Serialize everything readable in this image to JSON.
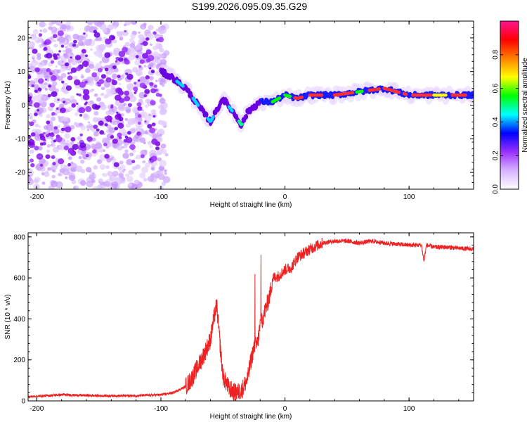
{
  "title": "S199.2026.095.09.35.G29",
  "chart_data": [
    {
      "type": "heatmap",
      "name": "spectrogram",
      "xlabel": "Height of straight line (km)",
      "ylabel": "Frequency (Hz)",
      "xlim": [
        -207,
        152
      ],
      "ylim": [
        -25,
        25
      ],
      "xticks": [
        -200,
        -100,
        0,
        100
      ],
      "yticks": [
        -20,
        -10,
        0,
        10,
        20
      ],
      "colorbar": {
        "label": "Normalized spectral amplitude",
        "range": [
          0,
          1
        ],
        "ticks": [
          "0.0",
          "0.2",
          "0.4",
          "0.6",
          "0.8"
        ],
        "colors": [
          "#ffffff",
          "#d7b3ff",
          "#9b30ff",
          "#0000ff",
          "#00ffff",
          "#00ff00",
          "#ffff00",
          "#ff8000",
          "#ff0000",
          "#ff1493"
        ]
      },
      "ridge": {
        "description": "dominant frequency track (km, Hz)",
        "x": [
          -100,
          -90,
          -80,
          -70,
          -60,
          -50,
          -40,
          -35,
          -30,
          -20,
          -10,
          0,
          10,
          20,
          40,
          60,
          80,
          100,
          120,
          150
        ],
        "y": [
          10,
          8,
          5,
          0,
          -5,
          2,
          -3,
          -6,
          -2,
          1,
          1,
          3,
          2,
          3,
          3,
          4,
          5,
          3,
          3,
          3
        ]
      },
      "noise_region_km": [
        -207,
        -100
      ]
    },
    {
      "type": "line",
      "name": "snr",
      "xlabel": "Height of straight line (km)",
      "ylabel": "SNR (10 * v/v)",
      "xlim": [
        -207,
        152
      ],
      "ylim": [
        0,
        820
      ],
      "xticks": [
        -200,
        -100,
        0,
        100
      ],
      "yticks": [
        0,
        200,
        400,
        600,
        800
      ],
      "series": [
        {
          "name": "SNR",
          "color": "#ee2222",
          "x": [
            -207,
            -180,
            -150,
            -120,
            -100,
            -90,
            -80,
            -75,
            -70,
            -65,
            -60,
            -58,
            -55,
            -52,
            -50,
            -45,
            -40,
            -35,
            -30,
            -28,
            -25,
            -22,
            -20,
            -18,
            -15,
            -12,
            -10,
            -5,
            0,
            5,
            10,
            15,
            20,
            30,
            40,
            50,
            60,
            70,
            80,
            90,
            100,
            110,
            112,
            114,
            120,
            130,
            140,
            152
          ],
          "y": [
            20,
            30,
            25,
            25,
            30,
            40,
            70,
            110,
            170,
            230,
            300,
            380,
            470,
            250,
            120,
            60,
            40,
            50,
            110,
            180,
            260,
            280,
            370,
            400,
            460,
            520,
            600,
            610,
            640,
            650,
            700,
            720,
            740,
            770,
            780,
            780,
            770,
            780,
            770,
            765,
            760,
            760,
            680,
            760,
            750,
            750,
            745,
            740
          ]
        }
      ]
    }
  ]
}
